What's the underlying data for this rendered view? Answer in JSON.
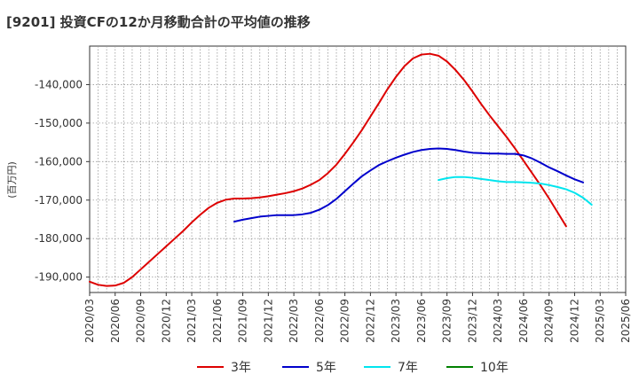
{
  "chart_data": {
    "type": "line",
    "title": "[9201]  投資CFの12か月移動合計の平均値の推移",
    "ylabel": "(百万円)",
    "xlabel": "",
    "ylim": [
      -194000,
      -130000
    ],
    "yticks": [
      -190000,
      -180000,
      -170000,
      -160000,
      -150000,
      -140000
    ],
    "ytick_labels": [
      "-190,000",
      "-180,000",
      "-170,000",
      "-160,000",
      "-150,000",
      "-140,000"
    ],
    "xticks": [
      "2020/03",
      "2020/06",
      "2020/09",
      "2020/12",
      "2021/03",
      "2021/06",
      "2021/09",
      "2021/12",
      "2022/03",
      "2022/06",
      "2022/09",
      "2022/12",
      "2023/03",
      "2023/06",
      "2023/09",
      "2023/12",
      "2024/03",
      "2024/06",
      "2024/09",
      "2024/12",
      "2025/03",
      "2025/06"
    ],
    "grid": true,
    "legend_position": "bottom",
    "series": [
      {
        "name": "3年",
        "color": "#dd0000",
        "start": "2020/03",
        "values": [
          -191200,
          -192000,
          -192300,
          -192200,
          -191500,
          -190000,
          -188000,
          -186000,
          -184000,
          -182000,
          -180000,
          -178000,
          -175800,
          -173800,
          -172000,
          -170700,
          -169900,
          -169600,
          -169600,
          -169500,
          -169300,
          -169000,
          -168600,
          -168200,
          -167700,
          -167000,
          -166000,
          -164800,
          -163000,
          -160800,
          -158000,
          -155000,
          -151800,
          -148300,
          -144800,
          -141200,
          -138000,
          -135200,
          -133200,
          -132200,
          -132000,
          -132500,
          -134000,
          -136200,
          -138800,
          -141800,
          -145000,
          -148000,
          -150800,
          -153600,
          -156600,
          -159800,
          -163000,
          -166200,
          -169600,
          -173200,
          -176800
        ]
      },
      {
        "name": "5年",
        "color": "#0000cc",
        "start": "2021/08",
        "values": [
          -175600,
          -175100,
          -174700,
          -174300,
          -174100,
          -173900,
          -173900,
          -173900,
          -173700,
          -173300,
          -172500,
          -171300,
          -169700,
          -167700,
          -165700,
          -163800,
          -162300,
          -160900,
          -159900,
          -159000,
          -158200,
          -157500,
          -157000,
          -156700,
          -156600,
          -156700,
          -157000,
          -157400,
          -157700,
          -157800,
          -157900,
          -157900,
          -158000,
          -158000,
          -158400,
          -159200,
          -160300,
          -161500,
          -162500,
          -163600,
          -164600,
          -165400
        ]
      },
      {
        "name": "7年",
        "color": "#00e5ee",
        "start": "2023/08",
        "values": [
          -164800,
          -164300,
          -164000,
          -164000,
          -164200,
          -164500,
          -164800,
          -165100,
          -165300,
          -165300,
          -165400,
          -165500,
          -165700,
          -166100,
          -166600,
          -167200,
          -168100,
          -169400,
          -171200
        ]
      },
      {
        "name": "10年",
        "color": "#008000",
        "start": "2025/03",
        "values": []
      }
    ]
  }
}
